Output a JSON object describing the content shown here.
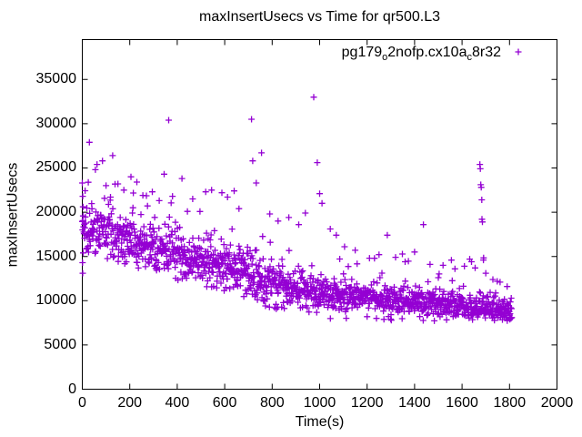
{
  "figure": {
    "title": "maxInsertUsecs vs Time for qr500.L3",
    "xlabel": "Time(s)",
    "ylabel": "maxInsertUsecs",
    "background_color": "#ffffff",
    "axis_color": "#000000"
  },
  "legend": {
    "plain_text": "pg179_o2nofp.cx10a_c8r32",
    "display_parts": [
      {
        "text": "pg179"
      },
      {
        "text": "o",
        "sub": true
      },
      {
        "text": "2nofp.cx10a"
      },
      {
        "text": "c",
        "sub": true
      },
      {
        "text": "8r32"
      }
    ],
    "marker": "plus",
    "marker_color": "#9400D3",
    "position": "top-right-inside"
  },
  "chart_data": {
    "type": "scatter",
    "title": "maxInsertUsecs vs Time for qr500.L3",
    "xlabel": "Time(s)",
    "ylabel": "maxInsertUsecs",
    "xlim": [
      0,
      2000
    ],
    "ylim": [
      0,
      39500
    ],
    "xticks": [
      0,
      200,
      400,
      600,
      800,
      1000,
      1200,
      1400,
      1600,
      1800,
      2000
    ],
    "yticks": [
      0,
      5000,
      10000,
      15000,
      20000,
      25000,
      30000,
      35000
    ],
    "grid": false,
    "tick_style": "inward-mirrored",
    "legend_position": "top-right",
    "series": [
      {
        "name": "pg179_o2nofp.cx10a_c8r32",
        "marker": "plus",
        "marker_size_px": 7,
        "color": "#9400D3",
        "description": "maxInsertUsecs per interval, decaying from ~18500 at t=0 to ~8900 at t=1810 with upper-tail spikes",
        "trend": [
          [
            0,
            18400
          ],
          [
            100,
            17600
          ],
          [
            200,
            16600
          ],
          [
            300,
            15700
          ],
          [
            400,
            15100
          ],
          [
            500,
            14500
          ],
          [
            600,
            13900
          ],
          [
            700,
            12900
          ],
          [
            800,
            11900
          ],
          [
            900,
            11500
          ],
          [
            1000,
            10700
          ],
          [
            1100,
            10500
          ],
          [
            1200,
            10300
          ],
          [
            1300,
            10100
          ],
          [
            1400,
            9900
          ],
          [
            1500,
            9700
          ],
          [
            1600,
            9400
          ],
          [
            1700,
            9100
          ],
          [
            1810,
            8800
          ]
        ],
        "sigma": [
          [
            0,
            1500
          ],
          [
            600,
            1450
          ],
          [
            800,
            1400
          ],
          [
            1000,
            1000
          ],
          [
            1200,
            900
          ],
          [
            1500,
            800
          ],
          [
            1810,
            700
          ]
        ],
        "floor": 7700,
        "generator": {
          "seed": 20240511,
          "t_start": 0,
          "t_end": 1810,
          "step": 1.2,
          "spike_prob": 0.035,
          "spike_add": [
            1200,
            5500
          ]
        },
        "outlier_points": [
          [
            0,
            23300
          ],
          [
            2,
            21800
          ],
          [
            3,
            20600
          ],
          [
            1,
            14300
          ],
          [
            2,
            13100
          ],
          [
            4,
            15400
          ],
          [
            30,
            27900
          ],
          [
            55,
            24800
          ],
          [
            62,
            25400
          ],
          [
            85,
            25800
          ],
          [
            100,
            23000
          ],
          [
            128,
            26400
          ],
          [
            150,
            23200
          ],
          [
            175,
            22500
          ],
          [
            205,
            24000
          ],
          [
            230,
            23400
          ],
          [
            255,
            21900
          ],
          [
            295,
            22300
          ],
          [
            345,
            24300
          ],
          [
            364,
            30400
          ],
          [
            380,
            21800
          ],
          [
            420,
            23800
          ],
          [
            465,
            21500
          ],
          [
            520,
            22300
          ],
          [
            545,
            22500
          ],
          [
            588,
            22200
          ],
          [
            612,
            21700
          ],
          [
            640,
            22400
          ],
          [
            660,
            20400
          ],
          [
            713,
            30500
          ],
          [
            718,
            25800
          ],
          [
            733,
            23300
          ],
          [
            755,
            26700
          ],
          [
            790,
            19800
          ],
          [
            825,
            19000
          ],
          [
            870,
            19400
          ],
          [
            912,
            18600
          ],
          [
            940,
            19900
          ],
          [
            975,
            33000
          ],
          [
            990,
            25600
          ],
          [
            1000,
            22100
          ],
          [
            1010,
            21000
          ],
          [
            1045,
            18100
          ],
          [
            1070,
            17400
          ],
          [
            1105,
            16100
          ],
          [
            1150,
            15700
          ],
          [
            1210,
            14800
          ],
          [
            1250,
            15200
          ],
          [
            1285,
            17400
          ],
          [
            1320,
            14900
          ],
          [
            1360,
            14400
          ],
          [
            1400,
            15500
          ],
          [
            1437,
            18600
          ],
          [
            1465,
            14100
          ],
          [
            1520,
            14000
          ],
          [
            1570,
            13600
          ],
          [
            1610,
            13900
          ],
          [
            1640,
            14400
          ],
          [
            1655,
            13700
          ],
          [
            1675,
            25400
          ],
          [
            1677,
            24900
          ],
          [
            1679,
            23100
          ],
          [
            1681,
            22800
          ],
          [
            1683,
            21400
          ],
          [
            1684,
            19200
          ],
          [
            1686,
            18900
          ],
          [
            1690,
            14600
          ],
          [
            1700,
            13100
          ],
          [
            1730,
            12400
          ],
          [
            1760,
            12100
          ],
          [
            1790,
            11600
          ]
        ]
      }
    ]
  }
}
